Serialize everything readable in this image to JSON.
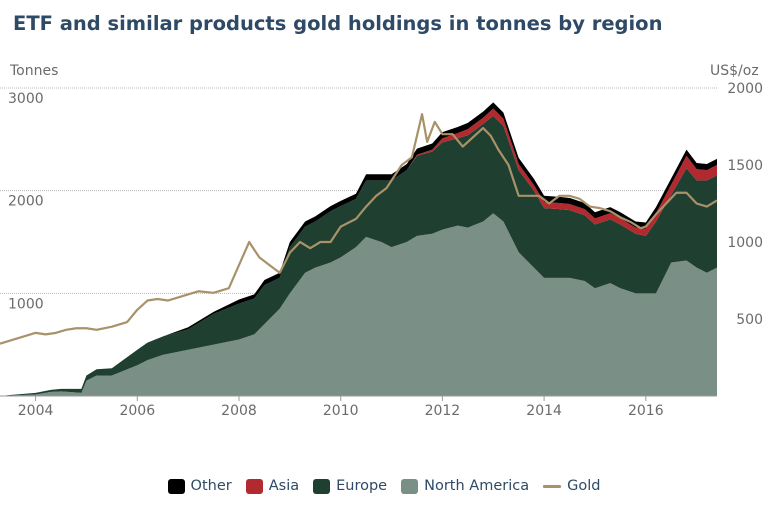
{
  "chart_data": {
    "type": "area",
    "title": "ETF and similar products gold holdings in tonnes by region",
    "ylabel_left": "Tonnes",
    "ylabel_right": "US$/oz",
    "x_ticks": [
      2004,
      2006,
      2008,
      2010,
      2012,
      2014,
      2016
    ],
    "y_left_ticks": [
      1000,
      2000,
      3000
    ],
    "y_left_range": [
      0,
      3000
    ],
    "y_right_ticks": [
      500,
      1000,
      1500,
      2000
    ],
    "y_right_range": [
      0,
      2000
    ],
    "x_range": [
      2003.3,
      2017.4
    ],
    "grid": true,
    "legend_position": "bottom",
    "x": [
      2003.3,
      2003.5,
      2004.0,
      2004.3,
      2004.5,
      2004.9,
      2005.0,
      2005.2,
      2005.5,
      2006.0,
      2006.2,
      2006.5,
      2007.0,
      2007.5,
      2008.0,
      2008.3,
      2008.5,
      2008.8,
      2009.0,
      2009.3,
      2009.5,
      2009.8,
      2010.0,
      2010.3,
      2010.5,
      2010.8,
      2011.0,
      2011.3,
      2011.5,
      2011.8,
      2012.0,
      2012.3,
      2012.5,
      2012.8,
      2013.0,
      2013.2,
      2013.5,
      2013.8,
      2014.0,
      2014.3,
      2014.5,
      2014.8,
      2015.0,
      2015.3,
      2015.5,
      2015.8,
      2016.0,
      2016.2,
      2016.5,
      2016.8,
      2017.0,
      2017.2,
      2017.4
    ],
    "series": [
      {
        "name": "North America",
        "color": "#7a8f85",
        "values": [
          0,
          5,
          15,
          40,
          45,
          30,
          150,
          200,
          200,
          300,
          350,
          400,
          450,
          500,
          550,
          600,
          700,
          850,
          1000,
          1200,
          1250,
          1300,
          1350,
          1450,
          1550,
          1500,
          1450,
          1500,
          1560,
          1580,
          1620,
          1660,
          1640,
          1700,
          1780,
          1700,
          1400,
          1250,
          1150,
          1150,
          1150,
          1120,
          1050,
          1100,
          1050,
          1000,
          1000,
          1000,
          1300,
          1320,
          1250,
          1200,
          1250
        ]
      },
      {
        "name": "Europe",
        "color": "#1f3f30",
        "values": [
          0,
          5,
          15,
          20,
          25,
          40,
          50,
          60,
          70,
          150,
          170,
          180,
          200,
          300,
          350,
          350,
          380,
          300,
          450,
          450,
          450,
          500,
          500,
          470,
          550,
          600,
          650,
          700,
          780,
          800,
          850,
          850,
          900,
          950,
          950,
          930,
          800,
          750,
          680,
          670,
          660,
          640,
          620,
          620,
          620,
          580,
          560,
          700,
          660,
          900,
          850,
          900,
          900
        ]
      },
      {
        "name": "Asia",
        "color": "#b22a2f",
        "values": [
          0,
          0,
          0,
          0,
          0,
          0,
          0,
          0,
          0,
          0,
          0,
          0,
          0,
          0,
          0,
          0,
          0,
          0,
          0,
          0,
          0,
          0,
          0,
          0,
          0,
          0,
          0,
          0,
          10,
          20,
          40,
          50,
          60,
          60,
          70,
          70,
          60,
          55,
          60,
          60,
          60,
          60,
          60,
          60,
          60,
          60,
          70,
          80,
          100,
          120,
          110,
          100,
          100
        ]
      },
      {
        "name": "Other",
        "color": "#000000",
        "values": [
          0,
          0,
          0,
          0,
          0,
          0,
          0,
          0,
          0,
          0,
          0,
          0,
          20,
          20,
          40,
          40,
          50,
          50,
          50,
          50,
          50,
          50,
          50,
          50,
          60,
          60,
          60,
          60,
          60,
          60,
          60,
          60,
          60,
          60,
          60,
          60,
          60,
          60,
          60,
          60,
          60,
          60,
          60,
          60,
          60,
          60,
          60,
          60,
          60,
          60,
          60,
          60,
          60
        ]
      }
    ],
    "line_series": {
      "name": "Gold",
      "color": "#a89269",
      "axis": "right",
      "x": [
        2003.3,
        2003.5,
        2003.8,
        2004.0,
        2004.2,
        2004.4,
        2004.6,
        2004.8,
        2005.0,
        2005.2,
        2005.5,
        2005.8,
        2006.0,
        2006.2,
        2006.4,
        2006.6,
        2006.9,
        2007.2,
        2007.5,
        2007.8,
        2008.0,
        2008.2,
        2008.4,
        2008.6,
        2008.8,
        2009.0,
        2009.2,
        2009.4,
        2009.6,
        2009.8,
        2010.0,
        2010.3,
        2010.5,
        2010.7,
        2010.9,
        2011.0,
        2011.2,
        2011.4,
        2011.6,
        2011.7,
        2011.85,
        2012.0,
        2012.2,
        2012.4,
        2012.6,
        2012.8,
        2012.95,
        2013.1,
        2013.3,
        2013.5,
        2013.7,
        2013.9,
        2014.1,
        2014.3,
        2014.5,
        2014.7,
        2014.9,
        2015.1,
        2015.3,
        2015.5,
        2015.7,
        2015.9,
        2016.0,
        2016.2,
        2016.4,
        2016.6,
        2016.8,
        2017.0,
        2017.2,
        2017.4
      ],
      "values": [
        340,
        360,
        390,
        410,
        400,
        410,
        430,
        440,
        440,
        430,
        450,
        480,
        560,
        620,
        630,
        620,
        650,
        680,
        670,
        700,
        850,
        1000,
        900,
        850,
        800,
        930,
        1000,
        960,
        1000,
        1000,
        1100,
        1150,
        1230,
        1300,
        1350,
        1400,
        1500,
        1550,
        1830,
        1650,
        1780,
        1700,
        1700,
        1620,
        1680,
        1740,
        1690,
        1600,
        1500,
        1300,
        1300,
        1300,
        1250,
        1300,
        1300,
        1280,
        1230,
        1220,
        1200,
        1160,
        1130,
        1090,
        1100,
        1180,
        1250,
        1320,
        1320,
        1250,
        1230,
        1270
      ]
    }
  },
  "legend": {
    "other": "Other",
    "asia": "Asia",
    "europe": "Europe",
    "north_america": "North America",
    "gold": "Gold"
  }
}
